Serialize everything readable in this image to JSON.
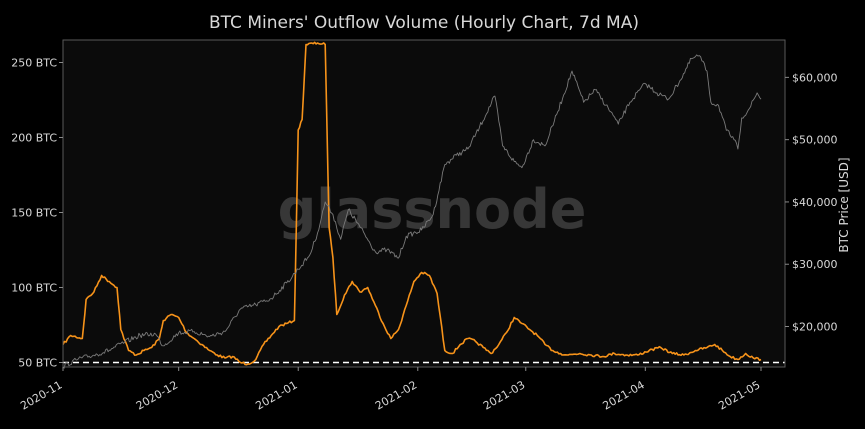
{
  "chart_data": {
    "type": "line",
    "title": "BTC Miners' Outflow Volume (Hourly Chart, 7d MA)",
    "watermark": "glassnode",
    "colors": {
      "background": "#000000",
      "plot_background": "#0b0b0b",
      "outflow": "#f7931a",
      "price": "#7a7a7a",
      "text": "#d8d8d8",
      "reference_line": "#ffffff"
    },
    "y_left": {
      "label": "",
      "unit": "BTC",
      "ticks": [
        50,
        100,
        150,
        200,
        250
      ],
      "tick_labels": [
        "50 BTC",
        "100 BTC",
        "150 BTC",
        "200 BTC",
        "250 BTC"
      ],
      "range": [
        47,
        265
      ]
    },
    "y_right": {
      "label": "BTC Price [USD]",
      "ticks": [
        20000,
        30000,
        40000,
        50000,
        60000
      ],
      "tick_labels": [
        "$20,000",
        "$30,000",
        "$40,000",
        "$50,000",
        "$60,000"
      ],
      "range": [
        13500,
        66000
      ]
    },
    "x": {
      "ticks": [
        "2020-11-01",
        "2020-12-01",
        "2021-01-01",
        "2021-02-01",
        "2021-03-01",
        "2021-04-01",
        "2021-05-01"
      ],
      "tick_labels": [
        "2020-11",
        "2020-12",
        "2021-01",
        "2021-02",
        "2021-03",
        "2021-04",
        "2021-05"
      ],
      "range": [
        "2020-11-01",
        "2021-05-01"
      ]
    },
    "reference_line": {
      "axis": "left",
      "value": 50,
      "style": "dashed"
    },
    "grid": false,
    "legend": "none",
    "series": [
      {
        "axis": "left",
        "color": "#f7931a",
        "points": [
          [
            "2020-11-01",
            62
          ],
          [
            "2020-11-03",
            68
          ],
          [
            "2020-11-06",
            66
          ],
          [
            "2020-11-07",
            92
          ],
          [
            "2020-11-09",
            97
          ],
          [
            "2020-11-11",
            108
          ],
          [
            "2020-11-13",
            104
          ],
          [
            "2020-11-15",
            100
          ],
          [
            "2020-11-16",
            72
          ],
          [
            "2020-11-18",
            58
          ],
          [
            "2020-11-20",
            55
          ],
          [
            "2020-11-22",
            58
          ],
          [
            "2020-11-24",
            60
          ],
          [
            "2020-11-26",
            66
          ],
          [
            "2020-11-27",
            78
          ],
          [
            "2020-11-29",
            82
          ],
          [
            "2020-12-01",
            80
          ],
          [
            "2020-12-03",
            70
          ],
          [
            "2020-12-05",
            66
          ],
          [
            "2020-12-07",
            62
          ],
          [
            "2020-12-09",
            58
          ],
          [
            "2020-12-11",
            55
          ],
          [
            "2020-12-13",
            53
          ],
          [
            "2020-12-15",
            54
          ],
          [
            "2020-12-17",
            50
          ],
          [
            "2020-12-19",
            49
          ],
          [
            "2020-12-21",
            52
          ],
          [
            "2020-12-23",
            62
          ],
          [
            "2020-12-25",
            68
          ],
          [
            "2020-12-27",
            74
          ],
          [
            "2020-12-29",
            76
          ],
          [
            "2020-12-31",
            78
          ],
          [
            "2021-01-01",
            205
          ],
          [
            "2021-01-02",
            212
          ],
          [
            "2021-01-03",
            262
          ],
          [
            "2021-01-06",
            263
          ],
          [
            "2021-01-08",
            262
          ],
          [
            "2021-01-09",
            140
          ],
          [
            "2021-01-10",
            120
          ],
          [
            "2021-01-11",
            82
          ],
          [
            "2021-01-13",
            95
          ],
          [
            "2021-01-15",
            104
          ],
          [
            "2021-01-17",
            97
          ],
          [
            "2021-01-19",
            100
          ],
          [
            "2021-01-21",
            88
          ],
          [
            "2021-01-23",
            76
          ],
          [
            "2021-01-25",
            66
          ],
          [
            "2021-01-27",
            72
          ],
          [
            "2021-01-29",
            88
          ],
          [
            "2021-01-31",
            104
          ],
          [
            "2021-02-02",
            110
          ],
          [
            "2021-02-04",
            108
          ],
          [
            "2021-02-06",
            96
          ],
          [
            "2021-02-08",
            58
          ],
          [
            "2021-02-10",
            56
          ],
          [
            "2021-02-12",
            62
          ],
          [
            "2021-02-14",
            66
          ],
          [
            "2021-02-16",
            64
          ],
          [
            "2021-02-18",
            60
          ],
          [
            "2021-02-20",
            56
          ],
          [
            "2021-02-22",
            62
          ],
          [
            "2021-02-24",
            70
          ],
          [
            "2021-02-26",
            80
          ],
          [
            "2021-02-28",
            76
          ],
          [
            "2021-03-02",
            72
          ],
          [
            "2021-03-04",
            68
          ],
          [
            "2021-03-06",
            62
          ],
          [
            "2021-03-08",
            58
          ],
          [
            "2021-03-10",
            56
          ],
          [
            "2021-03-12",
            55
          ],
          [
            "2021-03-15",
            56
          ],
          [
            "2021-03-18",
            55
          ],
          [
            "2021-03-21",
            54
          ],
          [
            "2021-03-24",
            56
          ],
          [
            "2021-03-27",
            55
          ],
          [
            "2021-03-30",
            55
          ],
          [
            "2021-04-02",
            58
          ],
          [
            "2021-04-05",
            60
          ],
          [
            "2021-04-08",
            56
          ],
          [
            "2021-04-11",
            55
          ],
          [
            "2021-04-14",
            58
          ],
          [
            "2021-04-17",
            60
          ],
          [
            "2021-04-19",
            62
          ],
          [
            "2021-04-21",
            58
          ],
          [
            "2021-04-23",
            54
          ],
          [
            "2021-04-25",
            52
          ],
          [
            "2021-04-27",
            56
          ],
          [
            "2021-04-29",
            53
          ],
          [
            "2021-05-01",
            52
          ]
        ]
      },
      {
        "axis": "right",
        "color": "#7a7a7a",
        "points": [
          [
            "2020-11-01",
            13600
          ],
          [
            "2020-11-05",
            14800
          ],
          [
            "2020-11-09",
            15400
          ],
          [
            "2020-11-13",
            16200
          ],
          [
            "2020-11-17",
            17500
          ],
          [
            "2020-11-21",
            18600
          ],
          [
            "2020-11-25",
            18800
          ],
          [
            "2020-11-27",
            16900
          ],
          [
            "2020-12-01",
            19000
          ],
          [
            "2020-12-05",
            19200
          ],
          [
            "2020-12-09",
            18400
          ],
          [
            "2020-12-13",
            19200
          ],
          [
            "2020-12-17",
            22800
          ],
          [
            "2020-12-21",
            23500
          ],
          [
            "2020-12-25",
            24500
          ],
          [
            "2020-12-29",
            27000
          ],
          [
            "2021-01-01",
            29200
          ],
          [
            "2021-01-04",
            31500
          ],
          [
            "2021-01-06",
            35000
          ],
          [
            "2021-01-08",
            40000
          ],
          [
            "2021-01-10",
            38000
          ],
          [
            "2021-01-12",
            34000
          ],
          [
            "2021-01-14",
            38800
          ],
          [
            "2021-01-17",
            36000
          ],
          [
            "2021-01-21",
            32000
          ],
          [
            "2021-01-24",
            32300
          ],
          [
            "2021-01-27",
            31000
          ],
          [
            "2021-01-29",
            34500
          ],
          [
            "2021-02-02",
            35500
          ],
          [
            "2021-02-05",
            38000
          ],
          [
            "2021-02-08",
            46000
          ],
          [
            "2021-02-11",
            47500
          ],
          [
            "2021-02-14",
            48500
          ],
          [
            "2021-02-17",
            52000
          ],
          [
            "2021-02-21",
            57000
          ],
          [
            "2021-02-23",
            49000
          ],
          [
            "2021-02-26",
            46500
          ],
          [
            "2021-02-28",
            45500
          ],
          [
            "2021-03-03",
            50000
          ],
          [
            "2021-03-06",
            49000
          ],
          [
            "2021-03-09",
            54000
          ],
          [
            "2021-03-13",
            61000
          ],
          [
            "2021-03-16",
            56000
          ],
          [
            "2021-03-19",
            58000
          ],
          [
            "2021-03-23",
            54500
          ],
          [
            "2021-03-25",
            52500
          ],
          [
            "2021-03-28",
            56000
          ],
          [
            "2021-04-01",
            59000
          ],
          [
            "2021-04-04",
            57500
          ],
          [
            "2021-04-07",
            56500
          ],
          [
            "2021-04-10",
            59500
          ],
          [
            "2021-04-13",
            63000
          ],
          [
            "2021-04-15",
            63500
          ],
          [
            "2021-04-17",
            61000
          ],
          [
            "2021-04-18",
            56000
          ],
          [
            "2021-04-20",
            55500
          ],
          [
            "2021-04-22",
            51500
          ],
          [
            "2021-04-24",
            50000
          ],
          [
            "2021-04-25",
            48500
          ],
          [
            "2021-04-26",
            53500
          ],
          [
            "2021-04-28",
            55000
          ],
          [
            "2021-04-30",
            57500
          ],
          [
            "2021-05-01",
            56500
          ]
        ]
      }
    ]
  }
}
